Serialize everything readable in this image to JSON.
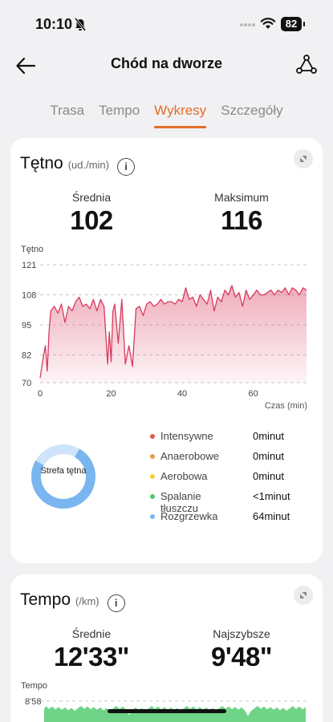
{
  "status": {
    "time": "10:10",
    "battery": "82"
  },
  "header": {
    "title": "Chód na dworze"
  },
  "tabs": [
    {
      "label": "Trasa"
    },
    {
      "label": "Tempo"
    },
    {
      "label": "Wykresy",
      "active": true
    },
    {
      "label": "Szczegóły"
    }
  ],
  "hr_card": {
    "title": "Tętno",
    "unit": "(ud./min)",
    "avg_label": "Średnia",
    "avg_value": "102",
    "max_label": "Maksimum",
    "max_value": "116",
    "zone_ring_label": "Strefa tętna",
    "zones": [
      {
        "name": "Intensywne",
        "value": "0minut",
        "color": "#e8574e"
      },
      {
        "name": "Anaerobowe",
        "value": "0minut",
        "color": "#e99a49"
      },
      {
        "name": "Aerobowa",
        "value": "0minut",
        "color": "#f2cf3a"
      },
      {
        "name": "Spalanie tłuszczu",
        "value": "<1minut",
        "color": "#4cc96a"
      },
      {
        "name": "Rozgrzewka",
        "value": "64minut",
        "color": "#79b6f0"
      }
    ]
  },
  "tempo_card": {
    "title": "Tempo",
    "unit": "(/km)",
    "avg_label": "Średnie",
    "avg_value": "12'33\"",
    "best_label": "Najszybsze",
    "best_value": "9'48\""
  },
  "chart_data": [
    {
      "type": "area",
      "ylabel": "Tętno",
      "xlabel": "Czas (min)",
      "yticks": [
        "121",
        "108",
        "95",
        "82",
        "70"
      ],
      "ylim": [
        70,
        121
      ],
      "xticks": [
        "0",
        "20",
        "40",
        "60"
      ],
      "xlim": [
        0,
        75
      ],
      "color": "#d93a5e",
      "x": [
        0,
        1,
        1.5,
        2,
        2.5,
        3,
        4,
        5,
        6,
        7,
        8,
        9,
        10,
        11,
        12,
        13,
        14,
        15,
        16,
        17,
        18,
        19,
        19.5,
        20,
        20.5,
        21,
        22,
        23,
        24,
        25,
        26,
        27,
        28,
        29,
        30,
        31,
        32,
        33,
        34,
        35,
        36,
        37,
        38,
        39,
        40,
        41,
        42,
        43,
        44,
        45,
        46,
        47,
        48,
        49,
        50,
        51,
        52,
        53,
        54,
        55,
        56,
        57,
        58,
        59,
        60,
        61,
        62,
        63,
        64,
        65,
        66,
        67,
        68,
        69,
        70,
        71,
        72,
        73,
        74,
        75
      ],
      "y": [
        72,
        82,
        86,
        75,
        92,
        101,
        103,
        100,
        104,
        96,
        103,
        101,
        105,
        107,
        103,
        104,
        102,
        106,
        101,
        106,
        103,
        78,
        92,
        79,
        101,
        104,
        87,
        106,
        78,
        86,
        77,
        102,
        103,
        99,
        104,
        105,
        103,
        104,
        106,
        104,
        105,
        105,
        104,
        106,
        105,
        111,
        106,
        107,
        103,
        108,
        106,
        104,
        110,
        101,
        107,
        105,
        110,
        108,
        112,
        107,
        109,
        103,
        110,
        106,
        108,
        110,
        108,
        108,
        109,
        110,
        108,
        110,
        109,
        111,
        108,
        111,
        110,
        108,
        111,
        110
      ]
    },
    {
      "type": "area",
      "ylabel": "Tempo",
      "yticks": [
        "8'58"
      ],
      "color": "#4cc96a"
    }
  ]
}
